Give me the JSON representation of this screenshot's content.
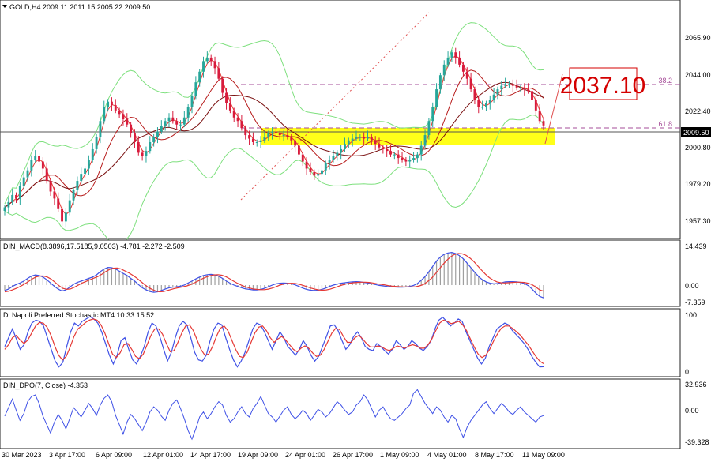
{
  "title": "GOLD,H4  2009.11 2011.15 2005.22 2009.50",
  "price_tag": "2037.10",
  "current_price": "2009.50",
  "fib_labels": [
    "38.2",
    "61.8"
  ],
  "panels": {
    "main": {
      "y_ticks": [
        "2065.90",
        "2044.00",
        "2022.40",
        "2000.80",
        "1979.20",
        "1957.30"
      ]
    },
    "macd": {
      "label": "DIN_MACD(8.3896,17.5185,9.0503) -4.781 -2.272 -2.509",
      "y_ticks": [
        "14.439",
        "0.00",
        "-7.359"
      ]
    },
    "stoch": {
      "label": "Di Napoli Preferred Stochastic MT4 10.33 15.52",
      "y_ticks": [
        "100",
        "0"
      ]
    },
    "dpo": {
      "label": "DIN_DPO(7, Close) -4.353",
      "y_ticks": [
        "32.936",
        "0.00",
        "-39.328"
      ]
    }
  },
  "x_labels": [
    "30 Mar 2023",
    "3 Apr 17:00",
    "6 Apr 09:00",
    "12 Apr 01:00",
    "14 Apr 17:00",
    "19 Apr 09:00",
    "24 Apr 01:00",
    "26 Apr 17:00",
    "1 May 09:00",
    "4 May 01:00",
    "8 May 17:00",
    "11 May 09:00"
  ],
  "colors": {
    "bull": "#26a69a",
    "bear": "#d81b3c",
    "signal_red": "#e53935",
    "macd_blue": "#3f51e6",
    "band_green": "#7ee07e",
    "zone": "#ffff00",
    "fib": "#a64d99"
  },
  "chart_data": [
    {
      "type": "candlestick",
      "title": "GOLD,H4  2009.11 2011.15 2005.22 2009.50",
      "ylim": [
        1948,
        2078
      ],
      "series": [
        {
          "name": "GOLD,H4",
          "close": [
            1963,
            1966,
            1970,
            1968,
            1975,
            1980,
            1984,
            1990,
            1992,
            1989,
            1985,
            1978,
            1972,
            1968,
            1962,
            1955,
            1960,
            1967,
            1973,
            1978,
            1982,
            1985,
            1990,
            1996,
            2003,
            2012,
            2020,
            2023,
            2021,
            2018,
            2016,
            2013,
            2010,
            2005,
            2000,
            1994,
            1992,
            1995,
            2000,
            2003,
            2006,
            2009,
            2012,
            2014,
            2012,
            2010,
            2010,
            2014,
            2020,
            2026,
            2034,
            2040,
            2046,
            2048,
            2046,
            2042,
            2036,
            2028,
            2022,
            2018,
            2014,
            2012,
            2008,
            2004,
            2002,
            2000,
            2000,
            2001,
            2003,
            2005,
            2006,
            2005,
            2004,
            2004,
            2003,
            2001,
            1998,
            1993,
            1989,
            1985,
            1983,
            1981,
            1982,
            1984,
            1988,
            1990,
            1992,
            1994,
            1996,
            1999,
            2001,
            2002,
            2003,
            2003,
            2002,
            2003,
            2001,
            1999,
            1997,
            1996,
            1995,
            1993,
            1993,
            1991,
            1990,
            1989,
            1990,
            1991,
            1993,
            1998,
            2004,
            2012,
            2020,
            2030,
            2038,
            2044,
            2048,
            2051,
            2048,
            2044,
            2040,
            2036,
            2030,
            2024,
            2020,
            2020,
            2022,
            2024,
            2027,
            2030,
            2032,
            2033,
            2033,
            2032,
            2031,
            2031,
            2030,
            2029,
            2024,
            2018,
            2012,
            2009.5
          ]
        }
      ]
    },
    {
      "type": "line",
      "title": "DIN_MACD(8.3896,17.5185,9.0503) -4.781 -2.272 -2.509",
      "ylim": [
        -7.359,
        14.439
      ],
      "series": [
        {
          "name": "macd",
          "values": [
            -2,
            -1.5,
            -0.5,
            0.2,
            0.8,
            1.5,
            2.5,
            3.4,
            3.8,
            3.6,
            3.0,
            2.0,
            0.8,
            -0.5,
            -1.5,
            -2.2,
            -1.8,
            -0.8,
            0.3,
            1.0,
            1.5,
            2.0,
            2.5,
            3.0,
            3.8,
            5.0,
            6.0,
            6.6,
            6.5,
            6.0,
            5.2,
            4.4,
            3.6,
            2.5,
            1.5,
            0.2,
            -1.0,
            -1.8,
            -2.4,
            -2.7,
            -2.5,
            -2.0,
            -1.5,
            -1.0,
            -0.8,
            -0.6,
            -0.4,
            0,
            0.8,
            1.5,
            2.3,
            3.0,
            3.6,
            3.9,
            4.0,
            3.8,
            3.3,
            2.5,
            1.5,
            0.7,
            0,
            -0.5,
            -1.0,
            -1.4,
            -1.6,
            -1.8,
            -1.8,
            -1.6,
            -1.2,
            -0.6,
            0,
            0.5,
            0.7,
            0.8,
            0.7,
            0.5,
            0.1,
            -0.5,
            -1.1,
            -1.6,
            -1.9,
            -2.0,
            -1.9,
            -1.6,
            -1.1,
            -0.5,
            0,
            0.4,
            0.7,
            0.9,
            1.1,
            1.2,
            1.3,
            1.2,
            1.0,
            0.8,
            0.5,
            0.2,
            -0.1,
            -0.3,
            -0.5,
            -0.6,
            -0.7,
            -0.8,
            -0.8,
            -0.7,
            -0.5,
            -0.1,
            0.6,
            1.8,
            3.2,
            5.0,
            7.0,
            9.0,
            10.5,
            11.5,
            12.0,
            12.2,
            11.8,
            11.0,
            9.8,
            8.2,
            6.5,
            4.8,
            3.2,
            2.0,
            1.2,
            0.7,
            0.5,
            0.6,
            0.9,
            1.2,
            1.3,
            1.3,
            1.2,
            1.0,
            0.6,
            -0.2,
            -1.5,
            -3.0,
            -4.2,
            -4.781
          ]
        },
        {
          "name": "signal",
          "values": [
            -2.5,
            -2.3,
            -1.8,
            -1.2,
            -0.5,
            0.3,
            1.2,
            2.2,
            3.0,
            3.4,
            3.4,
            3.0,
            2.2,
            1.0,
            -0.2,
            -1.2,
            -1.6,
            -1.4,
            -0.8,
            0,
            0.8,
            1.4,
            2.0,
            2.6,
            3.2,
            4.0,
            5.0,
            5.8,
            6.3,
            6.4,
            6.0,
            5.3,
            4.6,
            3.7,
            2.7,
            1.5,
            0.3,
            -0.8,
            -1.6,
            -2.2,
            -2.5,
            -2.4,
            -2.0,
            -1.6,
            -1.2,
            -0.9,
            -0.6,
            -0.3,
            0.2,
            0.9,
            1.6,
            2.4,
            3.0,
            3.5,
            3.8,
            3.9,
            3.7,
            3.2,
            2.4,
            1.5,
            0.7,
            0,
            -0.6,
            -1.0,
            -1.4,
            -1.6,
            -1.7,
            -1.7,
            -1.5,
            -1.1,
            -0.6,
            0,
            0.4,
            0.6,
            0.7,
            0.6,
            0.3,
            -0.1,
            -0.6,
            -1.1,
            -1.5,
            -1.8,
            -1.9,
            -1.8,
            -1.5,
            -1.0,
            -0.5,
            0,
            0.4,
            0.7,
            0.9,
            1.0,
            1.1,
            1.1,
            1.0,
            0.8,
            0.5,
            0.3,
            0.1,
            -0.2,
            -0.4,
            -0.5,
            -0.6,
            -0.7,
            -0.7,
            -0.7,
            -0.6,
            -0.3,
            0.2,
            1.2,
            2.4,
            4.0,
            5.8,
            7.6,
            9.2,
            10.5,
            11.4,
            11.8,
            11.7,
            11.1,
            10.1,
            8.8,
            7.2,
            5.6,
            4.1,
            2.8,
            1.9,
            1.2,
            0.9,
            0.8,
            0.9,
            1.0,
            1.1,
            1.1,
            1.0,
            0.7,
            0.2,
            -0.7,
            -1.8,
            -2.272
          ]
        }
      ]
    },
    {
      "type": "line",
      "title": "Di Napoli Preferred Stochastic MT4 10.33 15.52",
      "ylim": [
        0,
        100
      ],
      "series": [
        {
          "name": "fast",
          "values": [
            45,
            60,
            75,
            58,
            40,
            48,
            70,
            85,
            90,
            88,
            80,
            60,
            40,
            20,
            10,
            18,
            45,
            70,
            85,
            80,
            88,
            92,
            96,
            92,
            85,
            70,
            50,
            30,
            15,
            30,
            55,
            60,
            40,
            22,
            15,
            28,
            45,
            70,
            85,
            80,
            62,
            40,
            20,
            35,
            60,
            80,
            88,
            82,
            60,
            35,
            22,
            20,
            30,
            55,
            75,
            85,
            82,
            60,
            40,
            22,
            10,
            20,
            35,
            55,
            75,
            85,
            82,
            70,
            55,
            40,
            55,
            70,
            60,
            45,
            38,
            30,
            40,
            55,
            45,
            30,
            20,
            28,
            45,
            62,
            80,
            82,
            72,
            55,
            40,
            48,
            62,
            70,
            60,
            45,
            40,
            38,
            50,
            45,
            38,
            32,
            40,
            55,
            48,
            40,
            45,
            55,
            50,
            42,
            38,
            45,
            55,
            75,
            90,
            95,
            88,
            80,
            85,
            92,
            88,
            70,
            55,
            40,
            25,
            15,
            25,
            45,
            60,
            75,
            80,
            85,
            82,
            72,
            65,
            58,
            50,
            40,
            28,
            18,
            10,
            10.33
          ]
        },
        {
          "name": "slow",
          "values": [
            40,
            48,
            60,
            64,
            56,
            50,
            56,
            68,
            80,
            86,
            85,
            78,
            64,
            46,
            30,
            22,
            28,
            44,
            62,
            75,
            80,
            86,
            90,
            92,
            90,
            82,
            68,
            50,
            32,
            26,
            34,
            48,
            50,
            40,
            28,
            24,
            32,
            48,
            64,
            75,
            75,
            66,
            50,
            36,
            38,
            52,
            68,
            80,
            82,
            72,
            56,
            40,
            30,
            32,
            45,
            62,
            76,
            80,
            72,
            56,
            40,
            28,
            26,
            35,
            52,
            68,
            78,
            80,
            72,
            60,
            52,
            58,
            62,
            56,
            48,
            40,
            36,
            42,
            46,
            42,
            34,
            28,
            30,
            40,
            54,
            68,
            76,
            74,
            62,
            52,
            52,
            60,
            64,
            58,
            50,
            44,
            44,
            46,
            44,
            40,
            38,
            42,
            46,
            44,
            42,
            46,
            48,
            46,
            42,
            42,
            48,
            58,
            72,
            85,
            90,
            88,
            84,
            86,
            88,
            82,
            72,
            58,
            44,
            32,
            26,
            30,
            40,
            54,
            66,
            76,
            80,
            80,
            76,
            70,
            64,
            56,
            48,
            38,
            28,
            20,
            15.52
          ]
        }
      ]
    },
    {
      "type": "line",
      "title": "DIN_DPO(7, Close) -4.353",
      "ylim": [
        -39.328,
        32.936
      ],
      "series": [
        {
          "name": "dpo",
          "values": [
            -5,
            5,
            15,
            2,
            -10,
            -2,
            12,
            18,
            20,
            10,
            -5,
            -15,
            -25,
            -12,
            -3,
            -10,
            -20,
            -8,
            5,
            0,
            -6,
            2,
            10,
            4,
            -4,
            8,
            16,
            20,
            12,
            -4,
            -15,
            -26,
            -12,
            -3,
            -8,
            -15,
            -22,
            -12,
            0,
            6,
            2,
            -5,
            -10,
            2,
            10,
            14,
            4,
            -8,
            -22,
            -32,
            -20,
            -6,
            0,
            -8,
            -2,
            6,
            12,
            8,
            -4,
            -12,
            -8,
            0,
            6,
            -2,
            -6,
            4,
            10,
            18,
            8,
            -2,
            -6,
            -12,
            -5,
            2,
            6,
            -3,
            -8,
            -4,
            2,
            -2,
            -10,
            -4,
            3,
            0,
            -6,
            -2,
            5,
            12,
            8,
            2,
            -3,
            0,
            8,
            12,
            20,
            14,
            4,
            -6,
            2,
            6,
            -2,
            -8,
            -10,
            -6,
            -2,
            4,
            8,
            22,
            26,
            18,
            10,
            4,
            -2,
            6,
            2,
            -6,
            -12,
            -4,
            -8,
            -20,
            -30,
            -18,
            -10,
            -4,
            2,
            8,
            12,
            4,
            -2,
            4,
            10,
            6,
            0,
            -3,
            2,
            6,
            0,
            -4,
            -8,
            -12,
            -6,
            -4.353
          ]
        }
      ]
    }
  ]
}
